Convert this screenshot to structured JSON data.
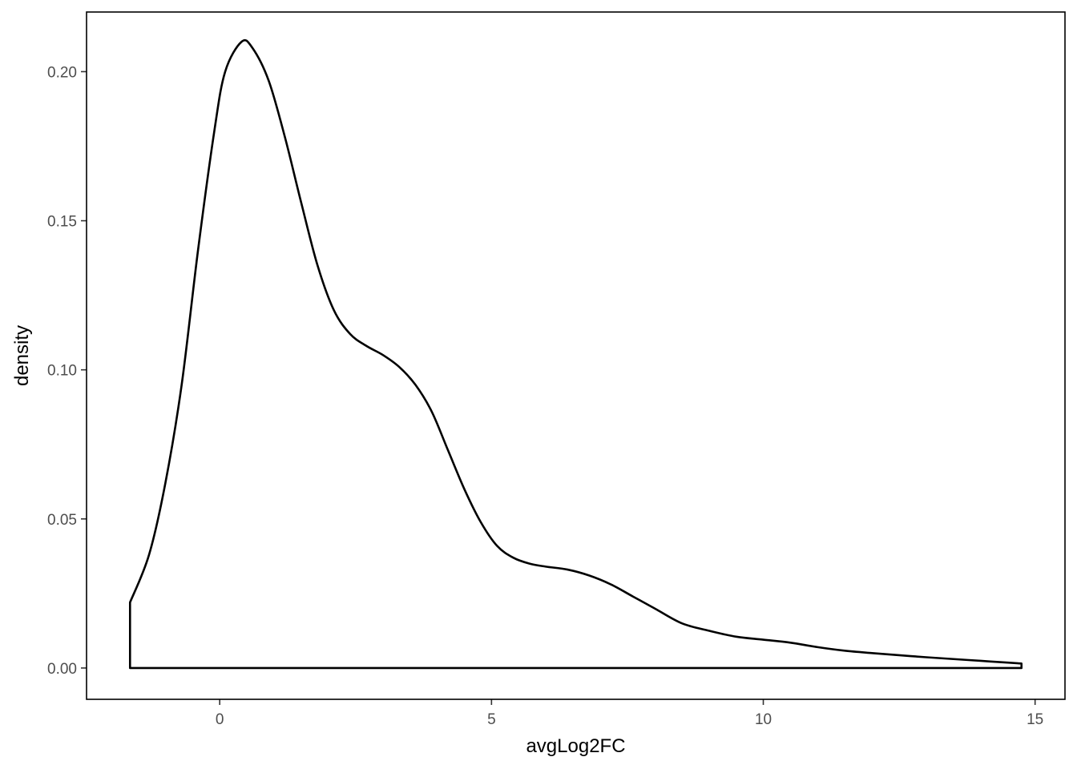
{
  "chart_data": {
    "type": "area",
    "geom": "density",
    "xlabel": "avgLog2FC",
    "ylabel": "density",
    "xlim": [
      -2.45,
      15.55
    ],
    "ylim": [
      -0.0105,
      0.22
    ],
    "x_ticks": [
      0,
      5,
      10,
      15
    ],
    "x_tick_labels": [
      "0",
      "5",
      "10",
      "15"
    ],
    "y_ticks": [
      0,
      0.05,
      0.1,
      0.15,
      0.2
    ],
    "y_tick_labels": [
      "0.00",
      "0.05",
      "0.10",
      "0.15",
      "0.20"
    ],
    "grid": false,
    "legend": "none",
    "colors": {
      "line": "#000000",
      "fill": "none",
      "ticks": "#333333",
      "tick_labels": "#4d4d4d"
    },
    "series": [
      {
        "x": [
          -1.65,
          -1.3,
          -1.0,
          -0.7,
          -0.4,
          -0.1,
          0.1,
          0.4,
          0.6,
          0.9,
          1.2,
          1.5,
          1.8,
          2.1,
          2.4,
          2.7,
          3.0,
          3.3,
          3.6,
          3.9,
          4.2,
          4.5,
          4.8,
          5.1,
          5.4,
          5.7,
          6.0,
          6.4,
          6.8,
          7.2,
          7.6,
          8.0,
          8.5,
          9.0,
          9.5,
          10.0,
          10.5,
          11.0,
          11.5,
          12.0,
          12.5,
          13.0,
          13.5,
          14.0,
          14.5,
          14.75
        ],
        "y": [
          0.022,
          0.038,
          0.062,
          0.095,
          0.14,
          0.18,
          0.2,
          0.21,
          0.208,
          0.197,
          0.178,
          0.156,
          0.135,
          0.12,
          0.112,
          0.108,
          0.105,
          0.101,
          0.095,
          0.086,
          0.073,
          0.06,
          0.049,
          0.041,
          0.037,
          0.035,
          0.034,
          0.033,
          0.031,
          0.028,
          0.024,
          0.02,
          0.015,
          0.0125,
          0.0105,
          0.0095,
          0.0085,
          0.007,
          0.0058,
          0.005,
          0.0043,
          0.0036,
          0.003,
          0.0024,
          0.0018,
          0.0015
        ]
      }
    ]
  }
}
